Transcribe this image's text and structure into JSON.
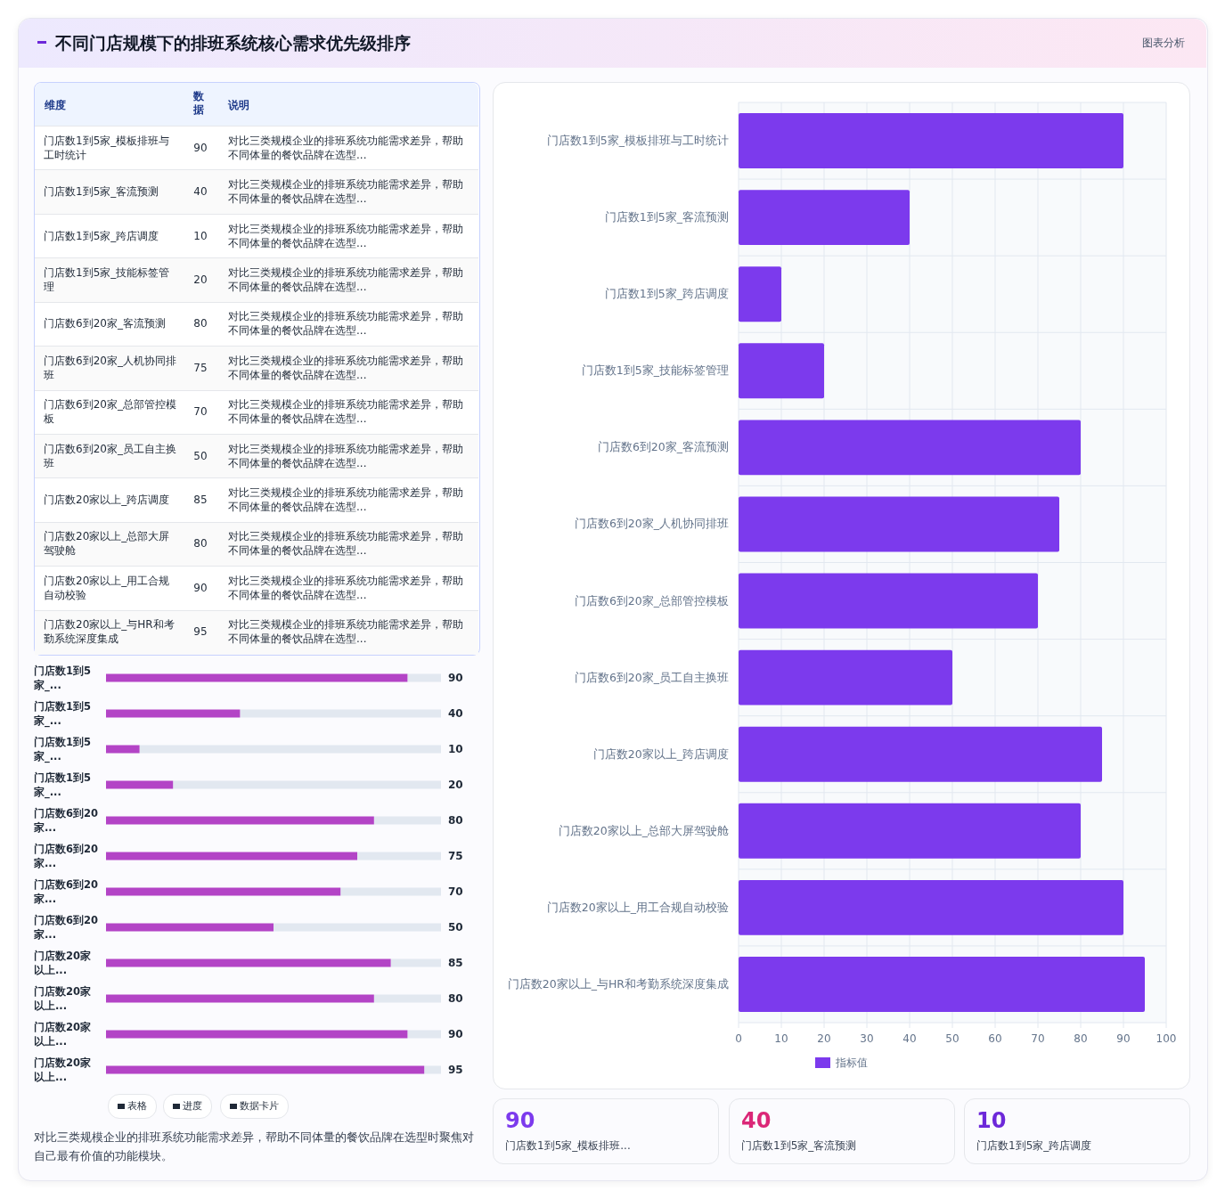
{
  "chart_data": [
    {
      "type": "other",
      "title": "不同门店规模下的排班系统核心需求优先级排序",
      "categories": [
        "门店数1到5家_模板排班与工时统计",
        "门店数1到5家_客流预测",
        "门店数1到5家_跨店调度",
        "门店数1到5家_技能标签管理",
        "门店数6到20家_客流预测",
        "门店数6到20家_人机协同排班",
        "门店数6到20家_总部管控模板",
        "门店数6到20家_员工自主换班",
        "门店数20家以上_跨店调度",
        "门店数20家以上_总部大屏驾驶舱",
        "门店数20家以上_用工合规自动校验",
        "门店数20家以上_与HR和考勤系统深度集成"
      ],
      "values": [
        90,
        40,
        10,
        20,
        80,
        75,
        70,
        50,
        85,
        80,
        90,
        95
      ],
      "data_labels": true,
      "annotations": [
        "图表分析",
        "维度",
        "数据",
        "说明",
        "对比三类规模企业的排班系统功能需求差异，帮助不同体量的餐饮品牌在选型...",
        "对比三类规模企业的排班系统功能需求差异，帮助不同体量的餐饮品牌在选型...",
        "对比三类规模企业的排班系统功能需求差异，帮助不同体量的餐饮品牌在选型...",
        "对比三类规模企业的排班系统功能需求差异，帮助不同体量的餐饮品牌在选型...",
        "对比三类规模企业的排班系统功能需求差异，帮助不同体量的餐饮品牌在选型...",
        "对比三类规模企业的排班系统功能需求差异，帮助不同体量的餐饮品牌在选型...",
        "对比三类规模企业的排班系统功能需求差异，帮助不同体量的餐饮品牌在选型...",
        "对比三类规模企业的排班系统功能需求差异，帮助不同体量的餐饮品牌在选型...",
        "对比三类规模企业的排班系统功能需求差异，帮助不同体量的餐饮品牌在选型...",
        "对比三类规模企业的排班系统功能需求差异，帮助不同体量的餐饮品牌在选型...",
        "对比三类规模企业的排班系统功能需求差异，帮助不同体量的餐饮品牌在选型...",
        "对比三类规模企业的排班系统功能需求差异，帮助不同体量的餐饮品牌在选型..."
      ]
    },
    {
      "type": "bar",
      "orientation": "horizontal",
      "categories": [
        "门店数1到5家_...",
        "门店数1到5家_...",
        "门店数1到5家_...",
        "门店数1到5家_...",
        "门店数6到20家...",
        "门店数6到20家...",
        "门店数6到20家...",
        "门店数6到20家...",
        "门店数20家以上...",
        "门店数20家以上...",
        "门店数20家以上...",
        "门店数20家以上..."
      ],
      "values": [
        90,
        40,
        10,
        20,
        80,
        75,
        70,
        50,
        85,
        80,
        90,
        95
      ],
      "color": "#b344c6",
      "data_labels": true,
      "annotations": [
        "表格",
        "进度",
        "数据卡片",
        "对比三类规模企业的排班系统功能需求差异，帮助不同体量的餐饮品牌在选型时聚焦对自己最有价值的功能模块。"
      ]
    },
    {
      "type": "bar",
      "orientation": "horizontal",
      "categories": [
        "门店数1到5家_模板排班与工时统计",
        "门店数1到5家_客流预测",
        "门店数1到5家_跨店调度",
        "门店数1到5家_技能标签管理",
        "门店数6到20家_客流预测",
        "门店数6到20家_人机协同排班",
        "门店数6到20家_总部管控模板",
        "门店数6到20家_员工自主换班",
        "门店数20家以上_跨店调度",
        "门店数20家以上_总部大屏驾驶舱",
        "门店数20家以上_用工合规自动校验",
        "门店数20家以上_与HR和考勤系统深度集成"
      ],
      "series": [
        {
          "name": "指标值",
          "color": "#7c3aed",
          "values": [
            90,
            40,
            10,
            20,
            80,
            75,
            70,
            50,
            85,
            80,
            90,
            95
          ]
        }
      ],
      "xlim": [
        0,
        100
      ],
      "xticks": [
        0,
        10,
        20,
        30,
        40,
        50,
        60,
        70,
        80,
        90,
        100
      ],
      "grid": true,
      "legend": "bottom"
    },
    {
      "type": "other",
      "categories": [
        "门店数1到5家_模板排班...",
        "门店数1到5家_客流预测",
        "门店数1到5家_跨店调度"
      ],
      "values": [
        90,
        40,
        10
      ],
      "colors": [
        "#7c3aed",
        "#db2777",
        "#6d28d9"
      ],
      "data_labels": true
    }
  ]
}
